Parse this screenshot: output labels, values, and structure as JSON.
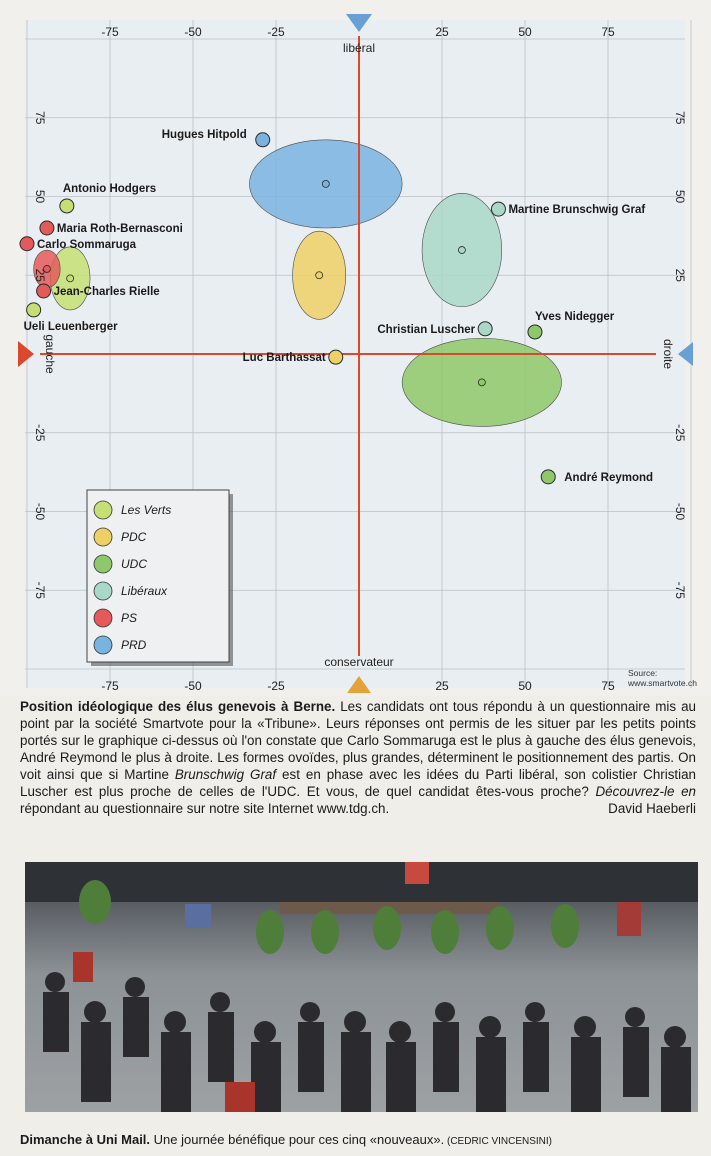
{
  "chart_data": {
    "type": "scatter",
    "axis_top_label": "libéral",
    "axis_bottom_label": "conservateur",
    "axis_left_label": "gauche",
    "axis_right_label": "droite",
    "xlim": [
      -100,
      100
    ],
    "ylim": [
      -100,
      100
    ],
    "x_ticks": [
      -75,
      -50,
      -25,
      25,
      50,
      75
    ],
    "y_ticks": [
      75,
      50,
      25,
      -25,
      -50,
      -75
    ],
    "grid": true,
    "legend_placement": "bottom-left",
    "source": "Source: www.smartvote.ch",
    "parties": [
      {
        "name": "Les Verts",
        "color": "#c6df74",
        "cx": -87,
        "cy": 24,
        "rx": 6,
        "ry": 10
      },
      {
        "name": "PDC",
        "color": "#efd067",
        "cx": -12,
        "cy": 25,
        "rx": 8,
        "ry": 14
      },
      {
        "name": "UDC",
        "color": "#8ec86a",
        "cx": 37,
        "cy": -9,
        "rx": 24,
        "ry": 14
      },
      {
        "name": "Libéraux",
        "color": "#a9d8c8",
        "cx": 31,
        "cy": 33,
        "rx": 12,
        "ry": 18
      },
      {
        "name": "PS",
        "color": "#e45a5a",
        "cx": -94,
        "cy": 27,
        "rx": 4,
        "ry": 6
      },
      {
        "name": "PRD",
        "color": "#7ab3e0",
        "cx": -10,
        "cy": 54,
        "rx": 23,
        "ry": 14
      }
    ],
    "candidates": [
      {
        "name": "Hugues Hitpold",
        "party": "PRD",
        "x": -29,
        "y": 68
      },
      {
        "name": "Antonio Hodgers",
        "party": "Les Verts",
        "x": -88,
        "y": 47
      },
      {
        "name": "Maria Roth-Bernasconi",
        "party": "PS",
        "x": -94,
        "y": 40
      },
      {
        "name": "Carlo Sommaruga",
        "party": "PS",
        "x": -100,
        "y": 35
      },
      {
        "name": "Jean-Charles Rielle",
        "party": "PS",
        "x": -95,
        "y": 20
      },
      {
        "name": "Ueli Leuenberger",
        "party": "Les Verts",
        "x": -98,
        "y": 14
      },
      {
        "name": "Martine Brunschwig Graf",
        "party": "Libéraux",
        "x": 42,
        "y": 46
      },
      {
        "name": "Christian Luscher",
        "party": "Libéraux",
        "x": 38,
        "y": 8
      },
      {
        "name": "Yves Nidegger",
        "party": "UDC",
        "x": 53,
        "y": 7
      },
      {
        "name": "Luc Barthassat",
        "party": "PDC",
        "x": -7,
        "y": -1
      },
      {
        "name": "André Reymond",
        "party": "UDC",
        "x": 57,
        "y": -39
      }
    ]
  },
  "caption": {
    "title": "Position idéologique des élus genevois à Berne.",
    "body_1": " Les candidats ont tous répondu à un questionnaire mis au point par la société Smartvote pour la «Tribune». Leurs réponses ont permis de les situer par les petits points portés sur le graphique ci-dessus où l'on constate que Carlo Sommaruga est le plus à gauche des élus genevois, André Reymond le plus à droite. Les formes ovoïdes, plus grandes, déterminent le positionnement des partis. On voit ainsi que si Martine ",
    "body_italic": "Brunschwig Graf",
    "body_2": " est en phase avec les idées du Parti libéral, son colistier Christian Luscher est plus proche de celles de l'UDC. Et vous, de quel candidat êtes-vous proche? ",
    "body_italic_2": "Découvrez-le en",
    "body_3": " répondant au questionnaire sur notre site Internet www.tdg.ch.",
    "author": "David Haeberli"
  },
  "photo_caption": {
    "title": "Dimanche à Uni Mail.",
    "text": " Une journée bénéfique pour ces cinq «nouveaux».",
    "credit": " (CEDRIC VINCENSINI)"
  }
}
